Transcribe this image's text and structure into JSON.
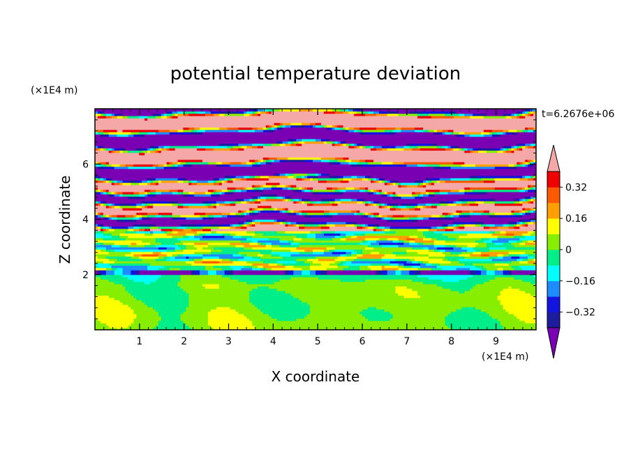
{
  "chart_data": {
    "type": "heatmap",
    "title": "potential temperature deviation",
    "xlabel": "X coordinate",
    "ylabel": "Z coordinate",
    "x_unit": "(×1E4 m)",
    "y_unit": "(×1E4 m)",
    "time_label": "t=6.2676e+06",
    "xlim": [
      0,
      9.9
    ],
    "ylim": [
      0,
      8
    ],
    "x_ticks": [
      1,
      2,
      3,
      4,
      5,
      6,
      7,
      8,
      9
    ],
    "y_ticks": [
      2,
      4,
      6
    ],
    "x_tick_labels": [
      "1",
      "2",
      "3",
      "4",
      "5",
      "6",
      "7",
      "8",
      "9"
    ],
    "y_tick_labels": [
      "2",
      "4",
      "6"
    ],
    "colorbar": {
      "levels": [
        -0.4,
        -0.32,
        -0.24,
        -0.16,
        -0.08,
        0,
        0.08,
        0.16,
        0.24,
        0.32,
        0.4
      ],
      "colors": [
        "#1c1c9c",
        "#1414e0",
        "#1e8cff",
        "#00ffff",
        "#00ee88",
        "#88ee00",
        "#ffff00",
        "#ffa000",
        "#ff5a00",
        "#ee0000"
      ],
      "under_color": "#7a00b4",
      "over_color": "#f5a8a8",
      "tick_values": [
        0.32,
        0.16,
        0,
        -0.16,
        -0.32
      ],
      "tick_labels": [
        "0.32",
        "0.16",
        "0",
        "−0.16",
        "−0.32"
      ]
    },
    "field_description_levels_by_height": [
      {
        "z_range": [
          0,
          2.0
        ],
        "dominant_values": [
          0.0,
          0.08
        ]
      },
      {
        "z_range": [
          2.0,
          3.6
        ],
        "dominant_values": [
          -0.08,
          0.0,
          0.08,
          -0.32,
          0.32
        ]
      },
      {
        "z_range": [
          3.6,
          5.6
        ],
        "dominant_values": [
          -0.4,
          -0.16,
          0.24,
          0.4
        ]
      },
      {
        "z_range": [
          5.6,
          8.0
        ],
        "dominant_values": [
          0.5,
          -0.5
        ]
      }
    ]
  }
}
